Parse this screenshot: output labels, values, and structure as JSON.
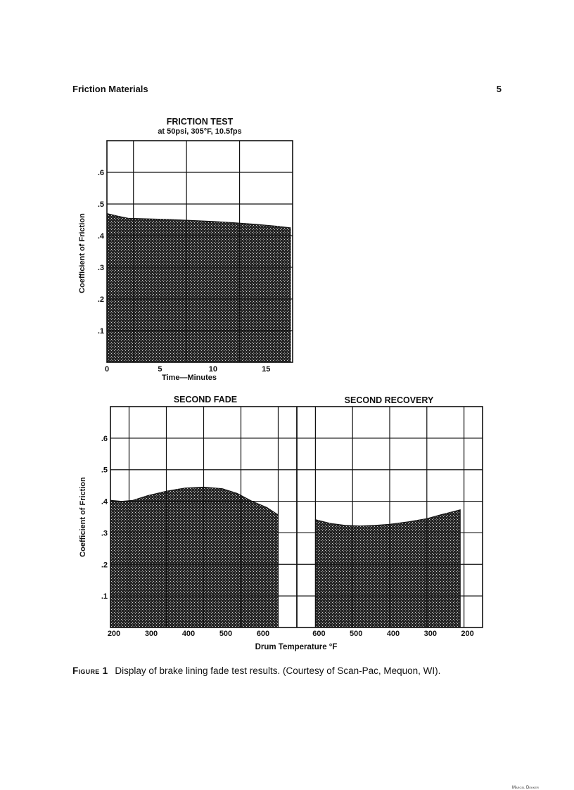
{
  "header": {
    "running_title": "Friction Materials",
    "page_number": "5"
  },
  "chart_data": [
    {
      "type": "area",
      "title": "FRICTION TEST",
      "subtitle": "at 50psi, 305°F, 10.5fps",
      "xlabel": "Time—Minutes",
      "ylabel": "Coefficient of Friction",
      "x_ticks": [
        "0",
        "5",
        "10",
        "15"
      ],
      "y_ticks": [
        ".1",
        ".2",
        ".3",
        ".4",
        ".5",
        ".6"
      ],
      "xlim": [
        0,
        17.5
      ],
      "ylim": [
        0,
        0.7
      ],
      "grid": true,
      "x": [
        0,
        1,
        2,
        4,
        6,
        8,
        10,
        12,
        14,
        16,
        17.3
      ],
      "values": [
        0.47,
        0.462,
        0.455,
        0.453,
        0.451,
        0.448,
        0.445,
        0.441,
        0.436,
        0.43,
        0.425
      ]
    },
    {
      "type": "area",
      "ylabel": "Coefficient of Friction",
      "xlabel": "Drum Temperature °F",
      "y_ticks": [
        ".1",
        ".2",
        ".3",
        ".4",
        ".5",
        ".6"
      ],
      "ylim": [
        0,
        0.7
      ],
      "grid": true,
      "panels": [
        {
          "title": "SECOND FADE",
          "x_ticks": [
            "200",
            "300",
            "400",
            "500",
            "600"
          ],
          "xlim": [
            200,
            700
          ],
          "x": [
            200,
            230,
            260,
            300,
            350,
            400,
            450,
            500,
            540,
            580,
            620,
            650
          ],
          "values": [
            0.403,
            0.4,
            0.403,
            0.418,
            0.432,
            0.442,
            0.445,
            0.44,
            0.425,
            0.4,
            0.38,
            0.357
          ]
        },
        {
          "title": "SECOND RECOVERY",
          "x_ticks": [
            "600",
            "500",
            "400",
            "300",
            "200"
          ],
          "xlim": [
            650,
            150
          ],
          "x": [
            600,
            560,
            520,
            480,
            440,
            400,
            350,
            300,
            260,
            210
          ],
          "values": [
            0.342,
            0.33,
            0.324,
            0.322,
            0.324,
            0.327,
            0.335,
            0.345,
            0.358,
            0.373
          ]
        }
      ]
    }
  ],
  "caption": {
    "label": "Figure 1",
    "text": "Display of brake lining fade test results. (Courtesy of Scan-Pac, Mequon, WI)."
  },
  "footer": {
    "corner_text": "Marcel Dekker"
  }
}
